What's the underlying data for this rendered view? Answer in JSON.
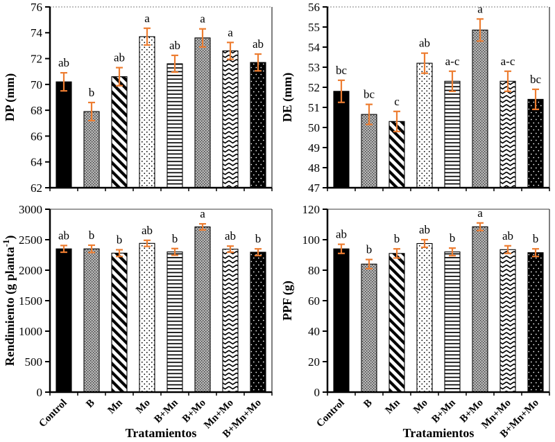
{
  "figure": {
    "x_axis_label": "Tratamientos",
    "error_bar_color": "#ED7D31",
    "axis_color": "#000000",
    "text_color": "#000000",
    "background_color": "#ffffff",
    "categories": [
      "Control",
      "B",
      "Mn",
      "Mo",
      "B+Mn",
      "B+Mo",
      "Mn+Mo",
      "B+Mn+Mo"
    ],
    "bar_patterns": [
      "solid-black",
      "gray-grid",
      "diagonal-stripes",
      "sparse-dots",
      "horizontal-lines",
      "gray-grid",
      "chevron",
      "black-white-dots"
    ]
  },
  "chart_data": [
    {
      "id": "dp",
      "type": "bar",
      "position": "top-left",
      "title": "",
      "ylabel": "DP (mm)",
      "xlabel": "",
      "ylim": [
        62,
        76
      ],
      "ystep": 2,
      "grid": false,
      "categories": [
        "Control",
        "B",
        "Mn",
        "Mo",
        "B+Mn",
        "B+Mo",
        "Mn+Mo",
        "B+Mn+Mo"
      ],
      "values": [
        70.2,
        67.9,
        70.6,
        73.7,
        71.6,
        73.6,
        72.6,
        71.7
      ],
      "errors": [
        0.7,
        0.7,
        0.7,
        0.65,
        0.65,
        0.7,
        0.65,
        0.65
      ],
      "letters": [
        "ab",
        "b",
        "ab",
        "a",
        "ab",
        "a",
        "a",
        "ab"
      ],
      "show_x_tick_labels": false
    },
    {
      "id": "de",
      "type": "bar",
      "position": "top-right",
      "title": "",
      "ylabel": "DE (mm)",
      "xlabel": "",
      "ylim": [
        47,
        56
      ],
      "ystep": 1,
      "grid": false,
      "categories": [
        "Control",
        "B",
        "Mn",
        "Mo",
        "B+Mn",
        "B+Mo",
        "Mn+Mo",
        "B+Mn+Mo"
      ],
      "values": [
        51.8,
        50.65,
        50.3,
        53.2,
        52.3,
        54.85,
        52.3,
        51.4
      ],
      "errors": [
        0.55,
        0.5,
        0.5,
        0.5,
        0.5,
        0.55,
        0.5,
        0.5
      ],
      "letters": [
        "bc",
        "bc",
        "c",
        "ab",
        "a-c",
        "a",
        "a-c",
        "bc"
      ],
      "show_x_tick_labels": false
    },
    {
      "id": "rendimiento",
      "type": "bar",
      "position": "bottom-left",
      "title": "",
      "ylabel": "Rendimiento (g planta⁻¹)",
      "ylabel_parts": {
        "pre": "Rendimiento (g planta",
        "sup": "-1",
        "post": ")"
      },
      "xlabel": "Tratamientos",
      "ylim": [
        0,
        3000
      ],
      "ystep": 500,
      "grid": false,
      "categories": [
        "Control",
        "B",
        "Mn",
        "Mo",
        "B+Mn",
        "B+Mo",
        "Mn+Mo",
        "B+Mn+Mo"
      ],
      "values": [
        2350,
        2350,
        2280,
        2440,
        2300,
        2710,
        2345,
        2295
      ],
      "errors": [
        55,
        60,
        55,
        50,
        55,
        50,
        50,
        55
      ],
      "letters": [
        "ab",
        "b",
        "b",
        "ab",
        "b",
        "a",
        "ab",
        "b"
      ],
      "show_x_tick_labels": true
    },
    {
      "id": "ppf",
      "type": "bar",
      "position": "bottom-right",
      "title": "",
      "ylabel": "PPF (g)",
      "xlabel": "Tratamientos",
      "ylim": [
        0,
        120
      ],
      "ystep": 20,
      "grid": false,
      "categories": [
        "Control",
        "B",
        "Mn",
        "Mo",
        "B+Mn",
        "B+Mo",
        "Mn+Mo",
        "B+Mn+Mo"
      ],
      "values": [
        94,
        84,
        91,
        97.5,
        92,
        108.5,
        93.5,
        91.5
      ],
      "errors": [
        3,
        3,
        3,
        2.5,
        2.5,
        2.5,
        2.5,
        2.5
      ],
      "letters": [
        "ab",
        "b",
        "b",
        "ab",
        "b",
        "a",
        "ab",
        "b"
      ],
      "show_x_tick_labels": true
    }
  ]
}
